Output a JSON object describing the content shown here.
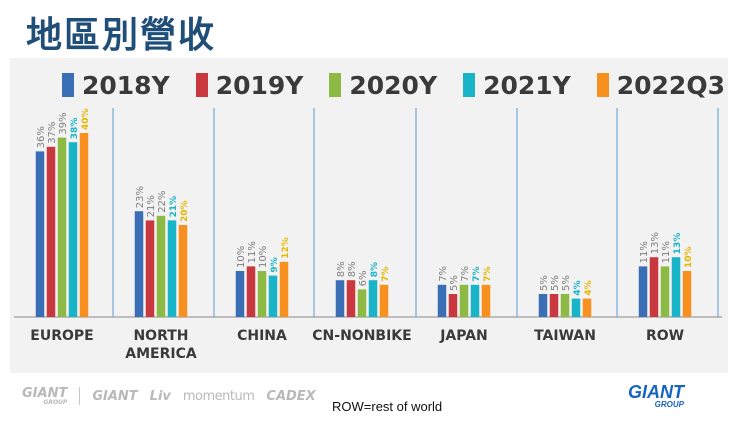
{
  "title": "地區別營收",
  "footnote": "ROW=rest of world",
  "footer": {
    "brands": [
      "GIANT",
      "GROUP",
      "GIANT",
      "Liv",
      "momentum",
      "CADEX"
    ],
    "main_logo": "GIANT",
    "main_logo_sub": "GROUP"
  },
  "chart_data": {
    "type": "bar",
    "title": "地區別營收",
    "categories": [
      "EUROPE",
      "NORTH\nAMERICA",
      "CHINA",
      "CN-NONBIKE",
      "JAPAN",
      "TAIWAN",
      "ROW"
    ],
    "series": [
      {
        "name": "2018Y",
        "color": "#3a6fb5",
        "values": [
          36,
          23,
          10,
          8,
          7,
          5,
          11
        ],
        "labels": [
          "36%",
          "23%",
          "10%",
          "8%",
          "7%",
          "5%",
          "11%"
        ]
      },
      {
        "name": "2019Y",
        "color": "#c9373f",
        "values": [
          37,
          21,
          11,
          8,
          5,
          5,
          13
        ],
        "labels": [
          "37%",
          "21%",
          "11%",
          "8%",
          "5%",
          "5%",
          "13%"
        ]
      },
      {
        "name": "2020Y",
        "color": "#8cba44",
        "values": [
          39,
          22,
          10,
          6,
          7,
          5,
          11
        ],
        "labels": [
          "39%",
          "22%",
          "10%",
          "6%",
          "7%",
          "5%",
          "11%"
        ]
      },
      {
        "name": "2021Y",
        "color": "#19b4c8",
        "values": [
          38,
          21,
          9,
          8,
          7,
          4,
          13
        ],
        "labels": [
          "38%",
          "21%",
          "9%",
          "8%",
          "7%",
          "4%",
          "13%"
        ]
      },
      {
        "name": "2022Q3",
        "color": "#f7901e",
        "values": [
          40,
          20,
          12,
          7,
          7,
          4,
          10
        ],
        "labels": [
          "40%",
          "20%",
          "12%",
          "7%",
          "7%",
          "4%",
          "10%"
        ]
      }
    ],
    "label_colors": [
      "#808080",
      "#808080",
      "#808080",
      "#19b4c8",
      "#e6b800"
    ],
    "ylim": [
      0,
      40
    ],
    "xlabel": "",
    "ylabel": "",
    "legend_position": "top",
    "grid": false
  }
}
